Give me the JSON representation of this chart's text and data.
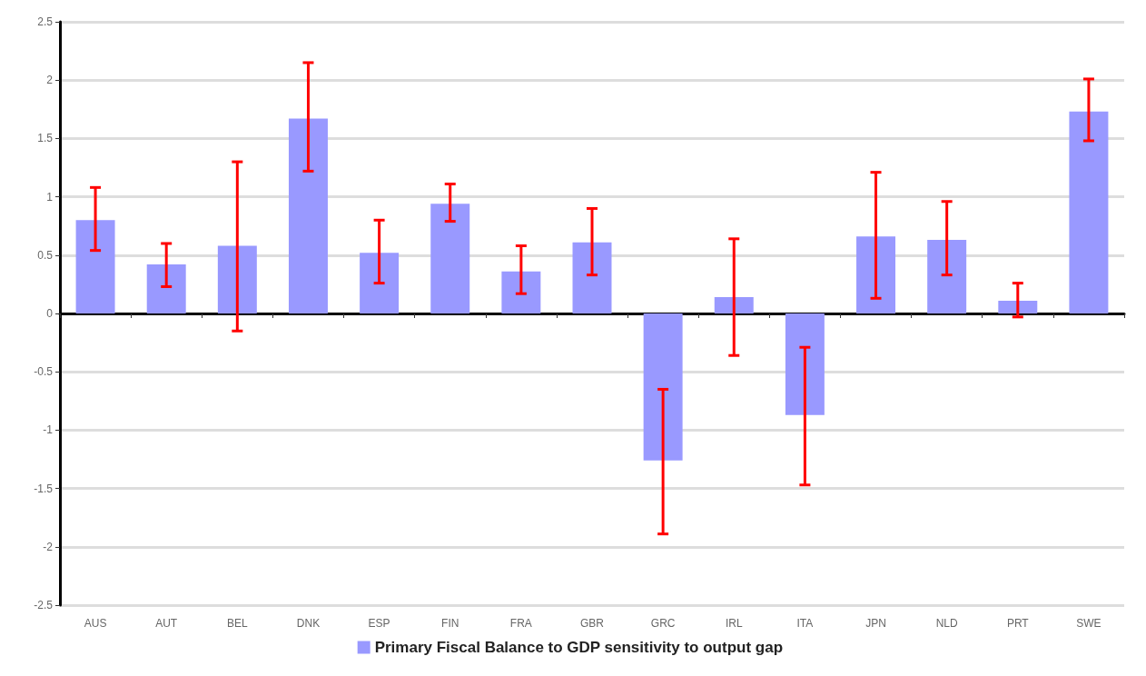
{
  "chart_data": {
    "type": "bar",
    "categories": [
      "AUS",
      "AUT",
      "BEL",
      "DNK",
      "ESP",
      "FIN",
      "FRA",
      "GBR",
      "GRC",
      "IRL",
      "ITA",
      "JPN",
      "NLD",
      "PRT",
      "SWE"
    ],
    "series": [
      {
        "name": "Primary Fiscal Balance to GDP sensitivity to output gap",
        "color": "#9999ff",
        "values": [
          0.8,
          0.42,
          0.58,
          1.67,
          0.52,
          0.94,
          0.36,
          0.61,
          -1.26,
          0.14,
          -0.87,
          0.66,
          0.63,
          0.11,
          1.73
        ],
        "errors": [
          [
            0.54,
            1.08
          ],
          [
            0.23,
            0.6
          ],
          [
            -0.15,
            1.3
          ],
          [
            1.22,
            2.15
          ],
          [
            0.26,
            0.8
          ],
          [
            0.79,
            1.11
          ],
          [
            0.17,
            0.58
          ],
          [
            0.33,
            0.9
          ],
          [
            -1.89,
            -0.65
          ],
          [
            -0.36,
            0.64
          ],
          [
            -1.47,
            -0.29
          ],
          [
            0.13,
            1.21
          ],
          [
            0.33,
            0.96
          ],
          [
            -0.03,
            0.26
          ],
          [
            1.48,
            2.01
          ]
        ]
      }
    ],
    "ylim": [
      -2.5,
      2.5
    ],
    "yticks": [
      -2.5,
      -2,
      -1.5,
      -1,
      -0.5,
      0,
      0.5,
      1,
      1.5,
      2,
      2.5
    ],
    "grid": "y",
    "legend": "bottom"
  }
}
